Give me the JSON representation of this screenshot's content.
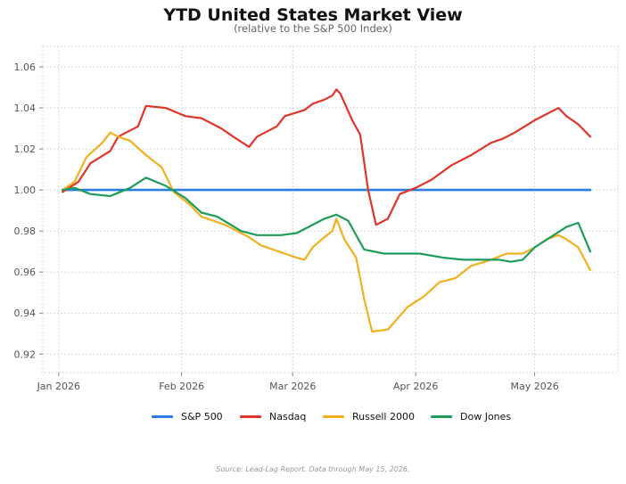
{
  "chart_data": {
    "type": "line",
    "title": "YTD United States Market View",
    "subtitle": "(relative to the S&P 500 Index)",
    "source": "Source: Lead-Lag Report. Data through May 15, 2026.",
    "xlabel": "",
    "ylabel": "",
    "x_ticks": [
      "Jan 2026",
      "Feb 2026",
      "Mar 2026",
      "Apr 2026",
      "May 2026"
    ],
    "y_ticks": [
      "0.92",
      "0.94",
      "0.96",
      "0.98",
      "1.00",
      "1.02",
      "1.04",
      "1.06"
    ],
    "xlim": [
      "2025-12-28",
      "2026-05-22"
    ],
    "ylim": [
      0.911,
      1.07
    ],
    "grid": true,
    "legend_position": "bottom",
    "series": [
      {
        "name": "S&P 500",
        "color": "#2b7de0",
        "points": [
          [
            "2026-01-02",
            1.0
          ],
          [
            "2026-05-15",
            1.0
          ]
        ]
      },
      {
        "name": "Nasdaq",
        "color": "#e0342a",
        "points": [
          [
            "2026-01-02",
            0.999
          ],
          [
            "2026-01-06",
            1.004
          ],
          [
            "2026-01-09",
            1.013
          ],
          [
            "2026-01-14",
            1.019
          ],
          [
            "2026-01-16",
            1.026
          ],
          [
            "2026-01-21",
            1.031
          ],
          [
            "2026-01-23",
            1.041
          ],
          [
            "2026-01-28",
            1.04
          ],
          [
            "2026-02-02",
            1.036
          ],
          [
            "2026-02-06",
            1.035
          ],
          [
            "2026-02-11",
            1.03
          ],
          [
            "2026-02-14",
            1.026
          ],
          [
            "2026-02-18",
            1.021
          ],
          [
            "2026-02-20",
            1.026
          ],
          [
            "2026-02-25",
            1.031
          ],
          [
            "2026-02-27",
            1.036
          ],
          [
            "2026-03-04",
            1.039
          ],
          [
            "2026-03-06",
            1.042
          ],
          [
            "2026-03-09",
            1.044
          ],
          [
            "2026-03-11",
            1.046
          ],
          [
            "2026-03-12",
            1.049
          ],
          [
            "2026-03-13",
            1.047
          ],
          [
            "2026-03-16",
            1.034
          ],
          [
            "2026-03-18",
            1.027
          ],
          [
            "2026-03-20",
            1.0
          ],
          [
            "2026-03-22",
            0.983
          ],
          [
            "2026-03-25",
            0.986
          ],
          [
            "2026-03-28",
            0.998
          ],
          [
            "2026-04-01",
            1.001
          ],
          [
            "2026-04-05",
            1.005
          ],
          [
            "2026-04-10",
            1.012
          ],
          [
            "2026-04-15",
            1.017
          ],
          [
            "2026-04-20",
            1.023
          ],
          [
            "2026-04-23",
            1.025
          ],
          [
            "2026-04-26",
            1.028
          ],
          [
            "2026-05-01",
            1.034
          ],
          [
            "2026-05-05",
            1.038
          ],
          [
            "2026-05-07",
            1.04
          ],
          [
            "2026-05-09",
            1.036
          ],
          [
            "2026-05-12",
            1.032
          ],
          [
            "2026-05-15",
            1.026
          ]
        ]
      },
      {
        "name": "Russell 2000",
        "color": "#f2b01e",
        "points": [
          [
            "2026-01-02",
            1.0
          ],
          [
            "2026-01-05",
            1.004
          ],
          [
            "2026-01-08",
            1.016
          ],
          [
            "2026-01-12",
            1.023
          ],
          [
            "2026-01-14",
            1.028
          ],
          [
            "2026-01-16",
            1.026
          ],
          [
            "2026-01-19",
            1.024
          ],
          [
            "2026-01-23",
            1.017
          ],
          [
            "2026-01-27",
            1.011
          ],
          [
            "2026-01-30",
            0.999
          ],
          [
            "2026-02-03",
            0.993
          ],
          [
            "2026-02-06",
            0.987
          ],
          [
            "2026-02-12",
            0.983
          ],
          [
            "2026-02-18",
            0.977
          ],
          [
            "2026-02-21",
            0.973
          ],
          [
            "2026-02-27",
            0.969
          ],
          [
            "2026-03-02",
            0.967
          ],
          [
            "2026-03-04",
            0.966
          ],
          [
            "2026-03-06",
            0.972
          ],
          [
            "2026-03-09",
            0.977
          ],
          [
            "2026-03-11",
            0.98
          ],
          [
            "2026-03-12",
            0.986
          ],
          [
            "2026-03-14",
            0.976
          ],
          [
            "2026-03-17",
            0.967
          ],
          [
            "2026-03-19",
            0.947
          ],
          [
            "2026-03-21",
            0.931
          ],
          [
            "2026-03-25",
            0.932
          ],
          [
            "2026-03-30",
            0.943
          ],
          [
            "2026-04-03",
            0.948
          ],
          [
            "2026-04-07",
            0.955
          ],
          [
            "2026-04-11",
            0.957
          ],
          [
            "2026-04-15",
            0.963
          ],
          [
            "2026-04-20",
            0.966
          ],
          [
            "2026-04-24",
            0.969
          ],
          [
            "2026-04-28",
            0.969
          ],
          [
            "2026-05-01",
            0.972
          ],
          [
            "2026-05-04",
            0.976
          ],
          [
            "2026-05-07",
            0.978
          ],
          [
            "2026-05-09",
            0.976
          ],
          [
            "2026-05-12",
            0.972
          ],
          [
            "2026-05-15",
            0.961
          ]
        ]
      },
      {
        "name": "Dow Jones",
        "color": "#1e9c5a",
        "points": [
          [
            "2026-01-02",
            1.0
          ],
          [
            "2026-01-05",
            1.001
          ],
          [
            "2026-01-09",
            0.998
          ],
          [
            "2026-01-14",
            0.997
          ],
          [
            "2026-01-19",
            1.001
          ],
          [
            "2026-01-23",
            1.006
          ],
          [
            "2026-01-28",
            1.002
          ],
          [
            "2026-02-02",
            0.996
          ],
          [
            "2026-02-06",
            0.989
          ],
          [
            "2026-02-10",
            0.987
          ],
          [
            "2026-02-16",
            0.98
          ],
          [
            "2026-02-20",
            0.978
          ],
          [
            "2026-02-26",
            0.978
          ],
          [
            "2026-03-02",
            0.979
          ],
          [
            "2026-03-05",
            0.982
          ],
          [
            "2026-03-09",
            0.986
          ],
          [
            "2026-03-12",
            0.988
          ],
          [
            "2026-03-15",
            0.985
          ],
          [
            "2026-03-17",
            0.978
          ],
          [
            "2026-03-19",
            0.971
          ],
          [
            "2026-03-24",
            0.969
          ],
          [
            "2026-03-28",
            0.969
          ],
          [
            "2026-04-02",
            0.969
          ],
          [
            "2026-04-08",
            0.967
          ],
          [
            "2026-04-13",
            0.966
          ],
          [
            "2026-04-17",
            0.966
          ],
          [
            "2026-04-22",
            0.966
          ],
          [
            "2026-04-25",
            0.965
          ],
          [
            "2026-04-28",
            0.966
          ],
          [
            "2026-05-01",
            0.972
          ],
          [
            "2026-05-05",
            0.977
          ],
          [
            "2026-05-09",
            0.982
          ],
          [
            "2026-05-12",
            0.984
          ],
          [
            "2026-05-15",
            0.97
          ]
        ]
      }
    ]
  }
}
